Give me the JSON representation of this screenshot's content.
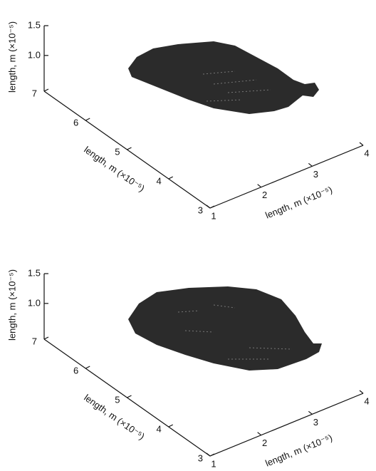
{
  "chart_data": [
    {
      "type": "voxel3d",
      "xlabel": "length, m (×10⁻⁵)",
      "ylabel": "length, m (×10⁻⁵)",
      "zlabel": "length, m (×10⁻⁵)",
      "xlim": [
        1,
        4
      ],
      "xticks": [
        1,
        2,
        3,
        4
      ],
      "ylim": [
        3,
        7
      ],
      "yticks": [
        3,
        4,
        5,
        6,
        7
      ],
      "zlim": [
        0.4,
        1.5
      ],
      "zticks": [
        {
          "value": 1,
          "label": "1.0"
        },
        {
          "value": 1.5,
          "label": "1.5"
        }
      ],
      "color": "#2b2b2b"
    },
    {
      "type": "voxel3d",
      "xlabel": "length, m (×10⁻⁵)",
      "ylabel": "length, m (×10⁻⁵)",
      "zlabel": "length, m (×10⁻⁵)",
      "xlim": [
        1,
        4
      ],
      "xticks": [
        1,
        2,
        3,
        4
      ],
      "ylim": [
        3,
        7
      ],
      "yticks": [
        3,
        4,
        5,
        6,
        7
      ],
      "zlim": [
        0.4,
        1.5
      ],
      "zticks": [
        {
          "value": 1,
          "label": "1.0"
        },
        {
          "value": 1.5,
          "label": "1.5"
        }
      ],
      "color": "#2b2b2b"
    }
  ]
}
